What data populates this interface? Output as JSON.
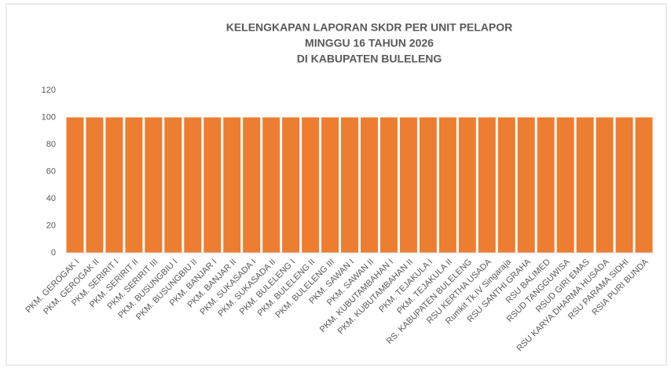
{
  "chart_data": {
    "type": "bar",
    "title": [
      "KELENGKAPAN LAPORAN SKDR PER UNIT PELAPOR",
      "MINGGU 16 TAHUN 2026",
      "DI KABUPATEN BULELENG"
    ],
    "categories": [
      "PKM. GEROGAK I",
      "PKM. GEROGAK II",
      "PKM. SERIRIT I",
      "PKM. SERIRIT II",
      "PKM. SERIRIT III",
      "PKM. BUSUNGBIU I",
      "PKM. BUSUNGBIU II",
      "PKM. BANJAR I",
      "PKM. BANJAR II",
      "PKM. SUKASADA I",
      "PKM. SUKASADA II",
      "PKM. BULELENG I",
      "PKM. BULELENG II",
      "PKM. BULELENG III",
      "PKM. SAWAN I",
      "PKM. SAWAN II",
      "PKM. KUBUTAMBAHAN I",
      "PKM. KUBUTAMBAHAN II",
      "PKM. TEJAKULA I",
      "PKM. TEJAKULA II",
      "RS. KABUPATEN BULELENG",
      "RSU KERTHA USADA",
      "Rumkit Tk.IV Singaraja",
      "RSU SANTHI GRAHA",
      "RSU BALIMED",
      "RSUD TANGGUWISA",
      "RSUD GIRI EMAS",
      "RSU KARYA DHARMA HUSADA",
      "RSU PARAMA SIDHI",
      "RSIA PURI BUNDA"
    ],
    "values": [
      100,
      100,
      100,
      100,
      100,
      100,
      100,
      100,
      100,
      100,
      100,
      100,
      100,
      100,
      100,
      100,
      100,
      100,
      100,
      100,
      100,
      100,
      100,
      100,
      100,
      100,
      100,
      100,
      100,
      100
    ],
    "color": "#ed7d31",
    "ylim": [
      0,
      120
    ],
    "yticks": [
      0,
      20,
      40,
      60,
      80,
      100,
      120
    ],
    "grid": false
  }
}
